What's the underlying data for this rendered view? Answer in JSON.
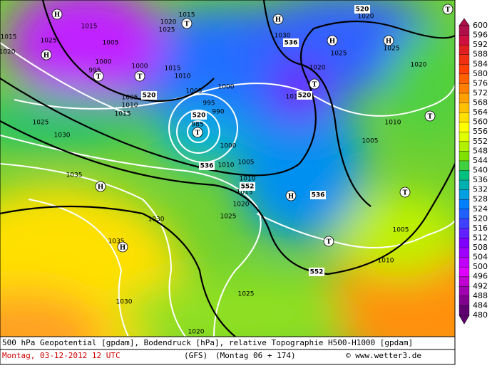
{
  "map": {
    "labels": [
      1015,
      1020,
      1025,
      1015,
      1005,
      1000,
      995,
      1000,
      1020,
      1025,
      1015,
      1015,
      1010,
      1005,
      1000,
      995,
      990,
      985,
      1005,
      1010,
      1015,
      1025,
      1030,
      1035,
      1030,
      1035,
      1030,
      1000,
      1005,
      1010,
      1010,
      1015,
      1020,
      1025,
      1025,
      1020,
      1030,
      1025,
      1020,
      1020,
      1025,
      1020,
      1010,
      1005,
      1005,
      1010,
      1015,
      520,
      520,
      536,
      552,
      536,
      520,
      536,
      552,
      520,
      "H",
      "H",
      "T",
      "T",
      "T",
      "T",
      "H",
      "H",
      "H",
      "T",
      "T",
      "H",
      "H",
      "H",
      "T",
      "T",
      "T"
    ]
  },
  "legend": {
    "labels": [
      600,
      596,
      592,
      588,
      584,
      580,
      576,
      572,
      568,
      564,
      560,
      556,
      552,
      548,
      544,
      540,
      536,
      532,
      528,
      524,
      520,
      516,
      512,
      508,
      504,
      500,
      496,
      492,
      488,
      484,
      480
    ]
  },
  "footer": {
    "line1": "500 hPa Geopotential [gpdam], Bodendruck [hPa], relative Topographie H500-H1000 [gpdam]",
    "date": "Montag, 03-12-2012  12 UTC",
    "model": "(GFS)",
    "run": "(Montag 06 + 174)",
    "credit": "© www.wetter3.de"
  }
}
